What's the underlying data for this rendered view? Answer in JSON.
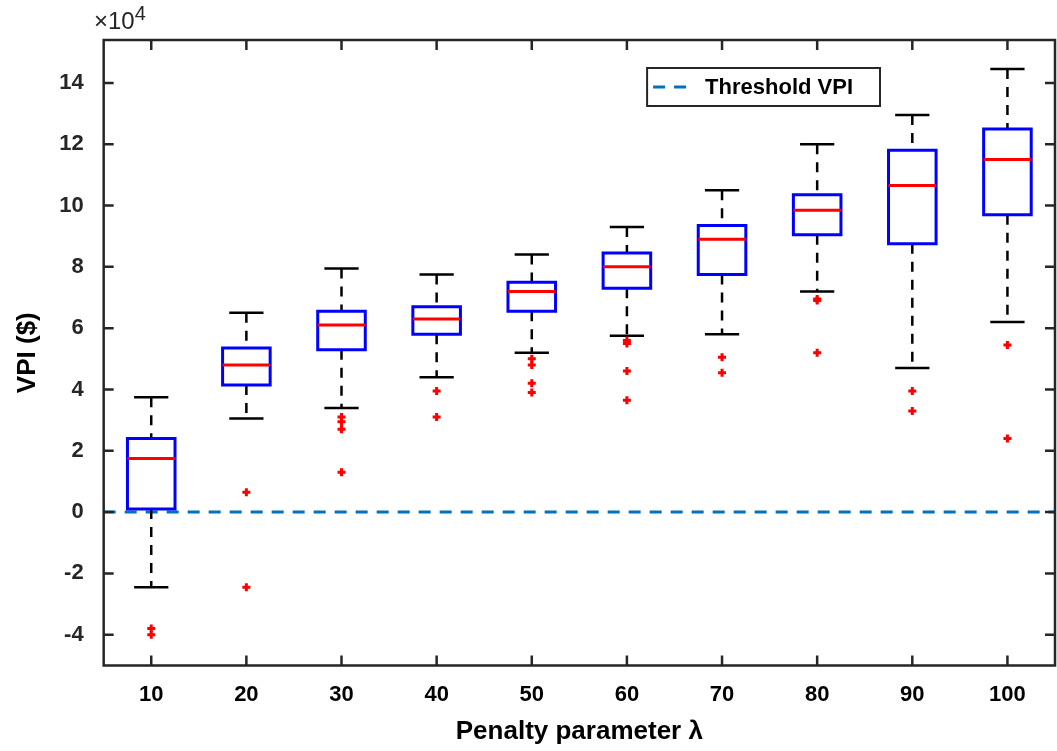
{
  "chart_data": {
    "type": "box",
    "xlabel": "Penalty parameter λ",
    "ylabel": "VPI ($)",
    "annotations": [
      "×10$^{4}$"
    ],
    "categories": [
      "10",
      "20",
      "30",
      "40",
      "50",
      "60",
      "70",
      "80",
      "90",
      "100"
    ],
    "color": "#0000ff",
    "boxes": [
      {
        "low": -2.45,
        "q1": 0.1,
        "median": 1.75,
        "q3": 2.4,
        "high": 3.75,
        "outliers": [
          -3.8,
          -4.0
        ]
      },
      {
        "low": 3.05,
        "q1": 4.15,
        "median": 4.8,
        "q3": 5.35,
        "high": 6.5,
        "outliers": [
          0.65,
          -2.45
        ]
      },
      {
        "low": 3.4,
        "q1": 5.3,
        "median": 6.1,
        "q3": 6.55,
        "high": 7.95,
        "outliers": [
          3.1,
          2.95,
          2.7,
          1.3
        ]
      },
      {
        "low": 4.4,
        "q1": 5.8,
        "median": 6.3,
        "q3": 6.7,
        "high": 7.75,
        "outliers": [
          3.95,
          3.1
        ]
      },
      {
        "low": 5.2,
        "q1": 6.55,
        "median": 7.2,
        "q3": 7.5,
        "high": 8.4,
        "outliers": [
          5.0,
          4.8,
          4.2,
          3.9
        ]
      },
      {
        "low": 5.75,
        "q1": 7.3,
        "median": 8.0,
        "q3": 8.45,
        "high": 9.3,
        "outliers": [
          5.6,
          5.5,
          4.6,
          3.65
        ]
      },
      {
        "low": 5.8,
        "q1": 7.75,
        "median": 8.9,
        "q3": 9.35,
        "high": 10.5,
        "outliers": [
          5.05,
          4.55
        ]
      },
      {
        "low": 7.2,
        "q1": 9.05,
        "median": 9.85,
        "q3": 10.35,
        "high": 12.0,
        "outliers": [
          6.95,
          6.9,
          5.2
        ]
      },
      {
        "low": 4.7,
        "q1": 8.75,
        "median": 10.65,
        "q3": 11.8,
        "high": 12.95,
        "outliers": [
          3.95,
          3.3
        ]
      },
      {
        "low": 6.2,
        "q1": 9.7,
        "median": 11.5,
        "q3": 12.5,
        "high": 14.45,
        "outliers": [
          5.45,
          2.4
        ]
      }
    ],
    "ylim": [
      -5,
      15.4
    ],
    "yticks": [
      -4,
      -2,
      0,
      2,
      4,
      6,
      8,
      10,
      12,
      14
    ],
    "ref_lines": [
      {
        "axis": "y",
        "value": 0,
        "label": "Threshold VPI",
        "color": "#0072bd",
        "line_style": "dashed"
      }
    ],
    "legend": "top right"
  }
}
